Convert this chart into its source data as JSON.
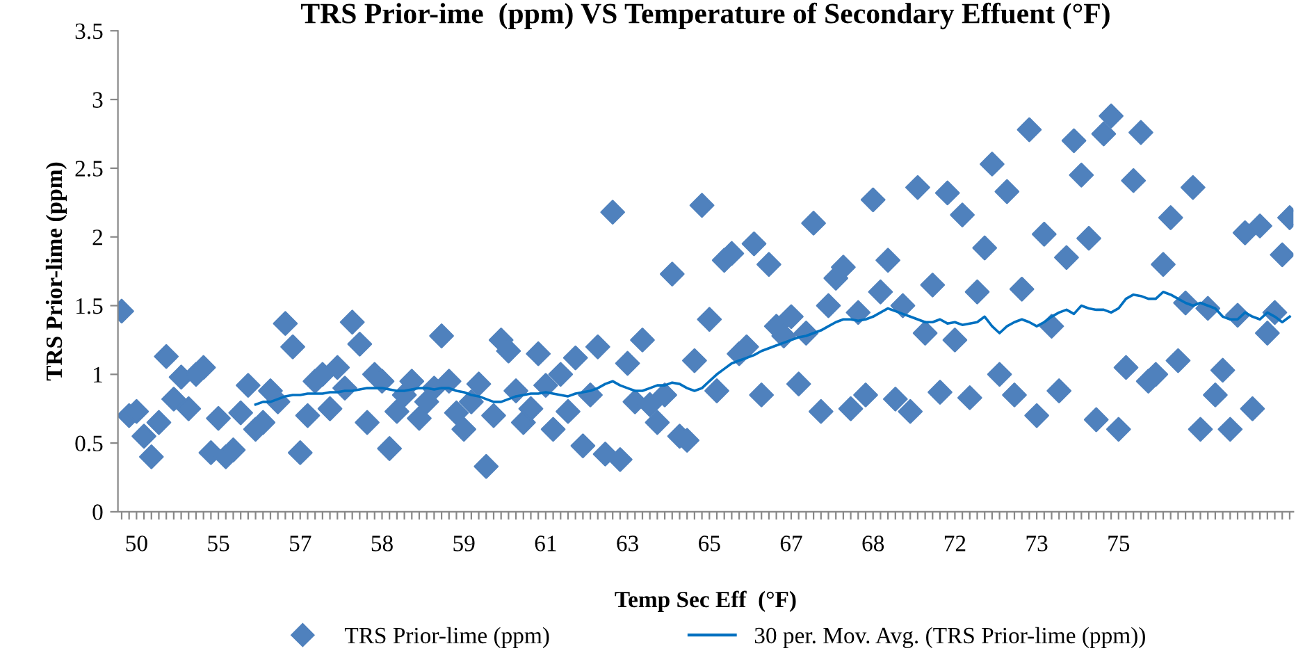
{
  "chart_data": {
    "type": "scatter",
    "title": "TRS Prior-ime  (ppm) VS Temperature of Secondary Effuent (°F)",
    "xlabel": "Temp Sec Eff  (°F)",
    "ylabel": "TRS Prior-lime (ppm)",
    "categories": [
      null,
      null,
      "50",
      null,
      null,
      null,
      null,
      null,
      null,
      null,
      null,
      null,
      null,
      "55",
      null,
      null,
      null,
      null,
      null,
      null,
      null,
      null,
      null,
      null,
      "57",
      null,
      null,
      null,
      null,
      null,
      null,
      null,
      null,
      null,
      null,
      "58",
      null,
      null,
      null,
      null,
      null,
      null,
      null,
      null,
      null,
      null,
      "59",
      null,
      null,
      null,
      null,
      null,
      null,
      null,
      null,
      null,
      null,
      "61",
      null,
      null,
      null,
      null,
      null,
      null,
      null,
      null,
      null,
      null,
      "63",
      null,
      null,
      null,
      null,
      null,
      null,
      null,
      null,
      null,
      null,
      "65",
      null,
      null,
      null,
      null,
      null,
      null,
      null,
      null,
      null,
      null,
      "67",
      null,
      null,
      null,
      null,
      null,
      null,
      null,
      null,
      null,
      null,
      "68",
      null,
      null,
      null,
      null,
      null,
      null,
      null,
      null,
      null,
      null,
      "72",
      null,
      null,
      null,
      null,
      null,
      null,
      null,
      null,
      null,
      null,
      "73",
      null,
      null,
      null,
      null,
      null,
      null,
      null,
      null,
      null,
      null,
      "75",
      null,
      null,
      null,
      null,
      null,
      null,
      null,
      null,
      null,
      null,
      null,
      null,
      null,
      null,
      null,
      null,
      null,
      null,
      null,
      null,
      null,
      null,
      null
    ],
    "ylim": [
      0,
      3.5
    ],
    "yticks": [
      0,
      0.5,
      1,
      1.5,
      2,
      2.5,
      3,
      3.5
    ],
    "grid": false,
    "legend": "bottom",
    "series": [
      {
        "name": "TRS Prior-lime (ppm)",
        "marker": "diamond",
        "color": "#4f81bd",
        "values": [
          1.46,
          0.7,
          0.73,
          0.55,
          0.4,
          0.65,
          1.13,
          0.82,
          0.98,
          0.75,
          1.0,
          1.05,
          0.43,
          0.68,
          0.4,
          0.45,
          0.72,
          0.92,
          0.6,
          0.65,
          0.88,
          0.8,
          1.37,
          1.2,
          0.43,
          0.7,
          0.95,
          1.0,
          0.75,
          1.05,
          0.9,
          1.38,
          1.22,
          0.65,
          1.0,
          0.95,
          0.46,
          0.73,
          0.85,
          0.95,
          0.68,
          0.8,
          0.9,
          1.28,
          0.95,
          0.72,
          0.6,
          0.8,
          0.93,
          0.33,
          0.7,
          1.25,
          1.17,
          0.88,
          0.65,
          0.75,
          1.15,
          0.92,
          0.6,
          1.0,
          0.73,
          1.12,
          0.48,
          0.85,
          1.2,
          0.42,
          2.18,
          0.38,
          1.08,
          0.8,
          1.25,
          0.78,
          0.65,
          0.85,
          1.73,
          0.55,
          0.52,
          1.1,
          2.23,
          1.4,
          0.88,
          1.83,
          1.88,
          1.15,
          1.2,
          1.95,
          0.85,
          1.8,
          1.35,
          1.28,
          1.42,
          0.93,
          1.3,
          2.1,
          0.73,
          1.5,
          1.7,
          1.78,
          0.75,
          1.45,
          0.85,
          2.27,
          1.6,
          1.83,
          0.82,
          1.5,
          0.73,
          2.36,
          1.3,
          1.65,
          0.87,
          2.32,
          1.25,
          2.16,
          0.83,
          1.6,
          1.92,
          2.53,
          1.0,
          2.33,
          0.85,
          1.62,
          2.78,
          0.7,
          2.02,
          1.35,
          0.88,
          1.85,
          2.7,
          2.45,
          1.99,
          0.67,
          2.75,
          2.88,
          0.6,
          1.05,
          2.41,
          2.76,
          0.95,
          1.0,
          1.8,
          2.14,
          1.1,
          1.52,
          2.36,
          0.6,
          1.48,
          0.85,
          1.03,
          0.6,
          1.43,
          2.03,
          0.75,
          2.08,
          1.3,
          1.45,
          1.87,
          2.14
        ]
      },
      {
        "name": "30 per. Mov. Avg. (TRS Prior-lime (ppm))",
        "type": "line",
        "marker": "none",
        "line_style": "solid",
        "color": "#0070c0",
        "values": [
          null,
          null,
          null,
          null,
          null,
          null,
          null,
          null,
          null,
          null,
          null,
          null,
          null,
          null,
          null,
          null,
          null,
          null,
          0.78,
          0.8,
          0.8,
          0.82,
          0.84,
          0.85,
          0.85,
          0.86,
          0.86,
          0.86,
          0.87,
          0.87,
          0.88,
          0.88,
          0.89,
          0.9,
          0.9,
          0.9,
          0.89,
          0.88,
          0.88,
          0.89,
          0.9,
          0.9,
          0.89,
          0.9,
          0.9,
          0.88,
          0.87,
          0.85,
          0.84,
          0.82,
          0.8,
          0.8,
          0.82,
          0.84,
          0.85,
          0.86,
          0.86,
          0.87,
          0.86,
          0.85,
          0.84,
          0.86,
          0.87,
          0.88,
          0.9,
          0.93,
          0.95,
          0.92,
          0.9,
          0.88,
          0.88,
          0.9,
          0.92,
          0.92,
          0.94,
          0.93,
          0.9,
          0.88,
          0.9,
          0.95,
          1.0,
          1.04,
          1.08,
          1.1,
          1.12,
          1.14,
          1.17,
          1.19,
          1.21,
          1.23,
          1.25,
          1.27,
          1.28,
          1.3,
          1.32,
          1.35,
          1.38,
          1.4,
          1.4,
          1.39,
          1.4,
          1.42,
          1.45,
          1.48,
          1.46,
          1.44,
          1.42,
          1.4,
          1.38,
          1.38,
          1.4,
          1.37,
          1.38,
          1.36,
          1.37,
          1.38,
          1.42,
          1.35,
          1.3,
          1.35,
          1.38,
          1.4,
          1.38,
          1.35,
          1.38,
          1.42,
          1.45,
          1.47,
          1.44,
          1.5,
          1.48,
          1.47,
          1.47,
          1.45,
          1.48,
          1.55,
          1.58,
          1.57,
          1.55,
          1.55,
          1.6,
          1.58,
          1.55,
          1.52,
          1.5,
          1.52,
          1.5,
          1.48,
          1.42,
          1.4,
          1.4,
          1.45,
          1.42,
          1.4,
          1.45,
          1.42,
          1.38,
          1.42
        ]
      }
    ]
  }
}
